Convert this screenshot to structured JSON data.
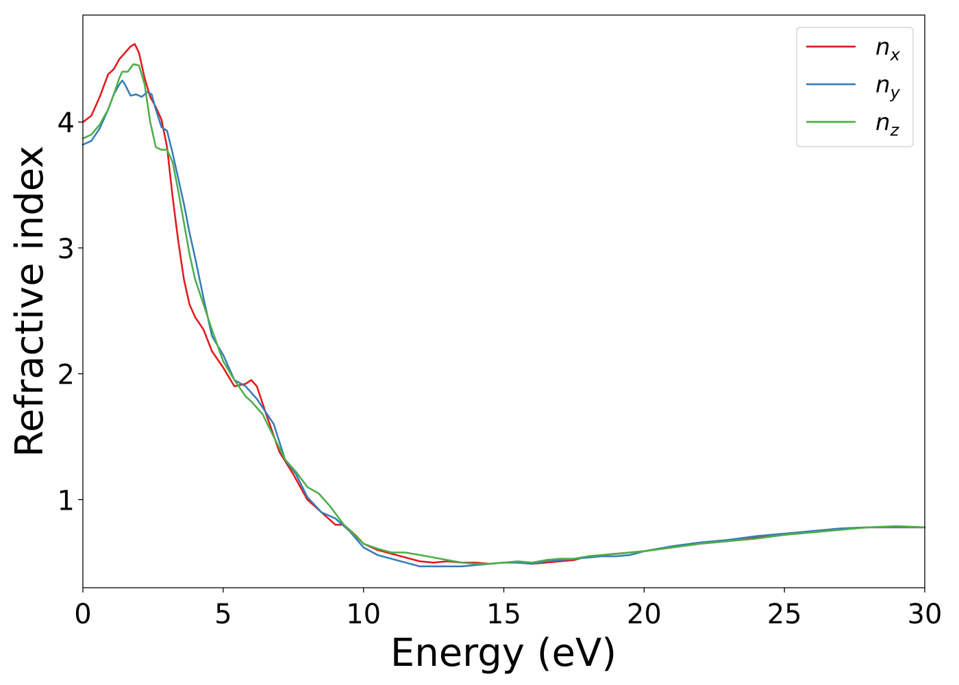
{
  "chart_data": {
    "type": "line",
    "title": "",
    "xlabel": "Energy (eV)",
    "ylabel": "Refractive index",
    "xlim": [
      0,
      30
    ],
    "ylim": [
      0.3,
      4.85
    ],
    "xticks": [
      0,
      5,
      10,
      15,
      20,
      25,
      30
    ],
    "xtick_labels": [
      "0",
      "5",
      "10",
      "15",
      "20",
      "25",
      "30"
    ],
    "yticks": [
      1,
      2,
      3,
      4
    ],
    "ytick_labels": [
      "1",
      "2",
      "3",
      "4"
    ],
    "grid": false,
    "legend_position": "top-right",
    "series": [
      {
        "name": "n",
        "sub": "x",
        "color": "#e41a1c",
        "x": [
          0,
          0.3,
          0.6,
          0.9,
          1.1,
          1.3,
          1.5,
          1.7,
          1.85,
          2.0,
          2.2,
          2.4,
          2.6,
          2.8,
          3.0,
          3.2,
          3.4,
          3.6,
          3.8,
          4.0,
          4.3,
          4.6,
          5.0,
          5.4,
          5.8,
          6.0,
          6.2,
          6.5,
          7.0,
          7.5,
          8.0,
          8.5,
          9.0,
          9.3,
          9.7,
          10.0,
          10.5,
          11.0,
          11.5,
          12.0,
          12.5,
          13.0,
          13.5,
          14.0,
          14.5,
          15.0,
          15.5,
          16.0,
          16.5,
          17.0,
          17.5,
          18.0,
          19.0,
          20.0,
          21.0,
          22.0,
          23.0,
          24.0,
          25.0,
          26.0,
          27.0,
          28.0,
          29.0,
          30.0
        ],
        "y": [
          4.0,
          4.05,
          4.2,
          4.38,
          4.42,
          4.5,
          4.55,
          4.6,
          4.62,
          4.55,
          4.35,
          4.2,
          4.12,
          4.02,
          3.8,
          3.4,
          3.05,
          2.75,
          2.55,
          2.45,
          2.35,
          2.18,
          2.05,
          1.9,
          1.92,
          1.95,
          1.9,
          1.7,
          1.38,
          1.2,
          1.0,
          0.9,
          0.8,
          0.8,
          0.72,
          0.65,
          0.6,
          0.57,
          0.54,
          0.51,
          0.5,
          0.51,
          0.5,
          0.5,
          0.49,
          0.5,
          0.5,
          0.49,
          0.5,
          0.51,
          0.52,
          0.55,
          0.57,
          0.59,
          0.62,
          0.65,
          0.67,
          0.7,
          0.72,
          0.75,
          0.77,
          0.78,
          0.78,
          0.78
        ]
      },
      {
        "name": "n",
        "sub": "y",
        "color": "#377eb8",
        "x": [
          0,
          0.3,
          0.6,
          0.9,
          1.1,
          1.3,
          1.4,
          1.5,
          1.7,
          1.9,
          2.1,
          2.3,
          2.45,
          2.6,
          2.8,
          3.0,
          3.2,
          3.4,
          3.6,
          3.8,
          4.0,
          4.3,
          4.6,
          5.0,
          5.4,
          5.8,
          6.2,
          6.8,
          7.2,
          7.6,
          8.0,
          8.5,
          9.0,
          9.5,
          10.0,
          10.5,
          11.0,
          11.5,
          12.0,
          12.5,
          13.0,
          13.5,
          14.0,
          14.5,
          15.0,
          15.5,
          16.0,
          16.5,
          17.0,
          17.5,
          18.0,
          18.5,
          19.0,
          19.5,
          20.0,
          20.5,
          21.0,
          22.0,
          23.0,
          24.0,
          25.0,
          26.0,
          27.0,
          28.0,
          29.0,
          30.0
        ],
        "y": [
          3.82,
          3.85,
          3.95,
          4.1,
          4.22,
          4.3,
          4.33,
          4.3,
          4.21,
          4.22,
          4.2,
          4.24,
          4.22,
          4.1,
          3.96,
          3.93,
          3.75,
          3.55,
          3.35,
          3.12,
          2.92,
          2.6,
          2.3,
          2.15,
          1.95,
          1.9,
          1.8,
          1.6,
          1.32,
          1.2,
          1.02,
          0.9,
          0.85,
          0.75,
          0.62,
          0.56,
          0.53,
          0.5,
          0.47,
          0.47,
          0.47,
          0.47,
          0.48,
          0.49,
          0.5,
          0.5,
          0.49,
          0.51,
          0.52,
          0.53,
          0.54,
          0.55,
          0.55,
          0.56,
          0.59,
          0.61,
          0.63,
          0.66,
          0.68,
          0.71,
          0.73,
          0.75,
          0.77,
          0.78,
          0.78,
          0.78
        ]
      },
      {
        "name": "n",
        "sub": "z",
        "color": "#4daf4a",
        "x": [
          0,
          0.3,
          0.6,
          0.9,
          1.1,
          1.3,
          1.4,
          1.6,
          1.8,
          2.0,
          2.2,
          2.4,
          2.6,
          2.8,
          3.0,
          3.2,
          3.4,
          3.6,
          3.8,
          4.0,
          4.3,
          4.6,
          5.0,
          5.4,
          5.8,
          6.0,
          6.4,
          6.8,
          7.2,
          7.6,
          8.0,
          8.4,
          8.8,
          9.3,
          10.0,
          10.5,
          11.0,
          11.5,
          12.0,
          12.5,
          13.0,
          13.5,
          14.0,
          14.5,
          15.0,
          15.5,
          16.0,
          16.5,
          17.0,
          17.5,
          18.0,
          19.0,
          20.0,
          21.0,
          22.0,
          23.0,
          24.0,
          25.0,
          26.0,
          27.0,
          28.0,
          29.0,
          30.0
        ],
        "y": [
          3.87,
          3.9,
          3.98,
          4.1,
          4.22,
          4.35,
          4.4,
          4.4,
          4.46,
          4.45,
          4.3,
          4.0,
          3.8,
          3.78,
          3.78,
          3.68,
          3.45,
          3.2,
          2.95,
          2.75,
          2.55,
          2.35,
          2.1,
          1.95,
          1.82,
          1.78,
          1.68,
          1.5,
          1.32,
          1.22,
          1.1,
          1.05,
          0.95,
          0.8,
          0.65,
          0.61,
          0.58,
          0.58,
          0.56,
          0.54,
          0.52,
          0.5,
          0.49,
          0.49,
          0.5,
          0.51,
          0.5,
          0.52,
          0.53,
          0.53,
          0.55,
          0.57,
          0.59,
          0.62,
          0.65,
          0.67,
          0.69,
          0.72,
          0.74,
          0.76,
          0.78,
          0.79,
          0.78
        ]
      }
    ]
  }
}
